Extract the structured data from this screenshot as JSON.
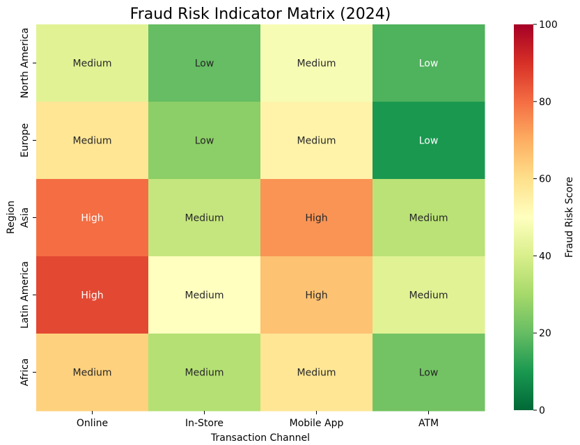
{
  "chart_data": {
    "type": "heatmap",
    "title": "Fraud Risk Indicator Matrix (2024)",
    "xlabel": "Transaction Channel",
    "ylabel": "Region",
    "x_categories": [
      "Online",
      "In-Store",
      "Mobile App",
      "ATM"
    ],
    "y_categories": [
      "North America",
      "Europe",
      "Asia",
      "Latin America",
      "Africa"
    ],
    "values": [
      [
        42,
        20,
        48,
        17
      ],
      [
        58,
        26,
        54,
        10
      ],
      [
        80,
        36,
        74,
        34
      ],
      [
        86,
        50,
        66,
        42
      ],
      [
        63,
        33,
        58,
        22
      ]
    ],
    "annotations": [
      [
        "Medium",
        "Low",
        "Medium",
        "Low"
      ],
      [
        "Medium",
        "Low",
        "Medium",
        "Low"
      ],
      [
        "High",
        "Medium",
        "High",
        "Medium"
      ],
      [
        "High",
        "Medium",
        "High",
        "Medium"
      ],
      [
        "Medium",
        "Medium",
        "Medium",
        "Low"
      ]
    ],
    "colorbar": {
      "label": "Fraud Risk Score",
      "min": 0,
      "max": 100,
      "ticks": [
        0,
        20,
        40,
        60,
        80,
        100
      ],
      "colormap": "RdYlGn_r"
    }
  }
}
